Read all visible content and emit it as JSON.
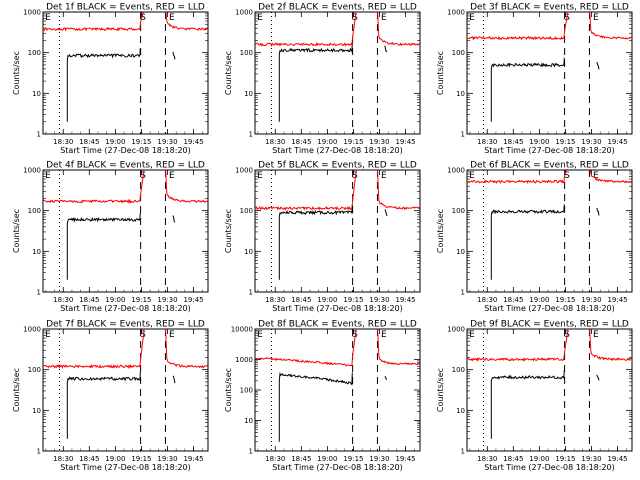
{
  "chart_data": [
    {
      "type": "line",
      "title": "Det 1f BLACK = Events, RED = LLD",
      "xlabel": "Start Time (27-Dec-08 18:18:20)",
      "ylabel": "Counts/sec",
      "yscale": "log",
      "ylim": [
        1,
        1000
      ],
      "ytick_labels": [
        "1",
        "10",
        "100",
        "1000"
      ],
      "xtick_labels": [
        "18:30",
        "18:45",
        "19:00",
        "19:15",
        "19:30",
        "19:45"
      ],
      "markers": [
        "E",
        "S",
        "E"
      ],
      "series": [
        {
          "name": "Events",
          "color": "#000000",
          "level": 85
        },
        {
          "name": "LLD",
          "color": "#ff0000",
          "level": 380
        }
      ]
    },
    {
      "type": "line",
      "title": "Det 2f BLACK = Events, RED = LLD",
      "xlabel": "Start Time (27-Dec-08 18:18:20)",
      "ylabel": "Counts/sec",
      "yscale": "log",
      "ylim": [
        1,
        1000
      ],
      "ytick_labels": [
        "1",
        "10",
        "100",
        "1000"
      ],
      "xtick_labels": [
        "18:30",
        "18:45",
        "19:00",
        "19:15",
        "19:30",
        "19:45"
      ],
      "markers": [
        "E",
        "S",
        "E"
      ],
      "series": [
        {
          "name": "Events",
          "color": "#000000",
          "level": 115
        },
        {
          "name": "LLD",
          "color": "#ff0000",
          "level": 160
        }
      ]
    },
    {
      "type": "line",
      "title": "Det 3f BLACK = Events, RED = LLD",
      "xlabel": "Start Time (27-Dec-08 18:18:20)",
      "ylabel": "Counts/sec",
      "yscale": "log",
      "ylim": [
        1,
        1000
      ],
      "ytick_labels": [
        "1",
        "10",
        "100",
        "1000"
      ],
      "xtick_labels": [
        "18:30",
        "18:45",
        "19:00",
        "19:15",
        "19:30",
        "19:45"
      ],
      "markers": [
        "E",
        "S",
        "E"
      ],
      "series": [
        {
          "name": "Events",
          "color": "#000000",
          "level": 50
        },
        {
          "name": "LLD",
          "color": "#ff0000",
          "level": 230
        }
      ]
    },
    {
      "type": "line",
      "title": "Det 4f BLACK = Events, RED = LLD",
      "xlabel": "Start Time (27-Dec-08 18:18:20)",
      "ylabel": "Counts/sec",
      "yscale": "log",
      "ylim": [
        1,
        1000
      ],
      "ytick_labels": [
        "1",
        "10",
        "100",
        "1000"
      ],
      "xtick_labels": [
        "18:30",
        "18:45",
        "19:00",
        "19:15",
        "19:30",
        "19:45"
      ],
      "markers": [
        "E",
        "S",
        "E"
      ],
      "series": [
        {
          "name": "Events",
          "color": "#000000",
          "level": 60
        },
        {
          "name": "LLD",
          "color": "#ff0000",
          "level": 170
        }
      ]
    },
    {
      "type": "line",
      "title": "Det 5f BLACK = Events, RED = LLD",
      "xlabel": "Start Time (27-Dec-08 18:18:20)",
      "ylabel": "Counts/sec",
      "yscale": "log",
      "ylim": [
        1,
        1000
      ],
      "ytick_labels": [
        "1",
        "10",
        "100",
        "1000"
      ],
      "xtick_labels": [
        "18:30",
        "18:45",
        "19:00",
        "19:15",
        "19:30",
        "19:45"
      ],
      "markers": [
        "E",
        "S",
        "E"
      ],
      "series": [
        {
          "name": "Events",
          "color": "#000000",
          "level": 90
        },
        {
          "name": "LLD",
          "color": "#ff0000",
          "level": 115
        }
      ]
    },
    {
      "type": "line",
      "title": "Det 6f BLACK = Events, RED = LLD",
      "xlabel": "Start Time (27-Dec-08 18:18:20)",
      "ylabel": "Counts/sec",
      "yscale": "log",
      "ylim": [
        1,
        1000
      ],
      "ytick_labels": [
        "1",
        "10",
        "100",
        "1000"
      ],
      "xtick_labels": [
        "18:30",
        "18:45",
        "19:00",
        "19:15",
        "19:30",
        "19:45"
      ],
      "markers": [
        "E",
        "S",
        "E"
      ],
      "series": [
        {
          "name": "Events",
          "color": "#000000",
          "level": 95
        },
        {
          "name": "LLD",
          "color": "#ff0000",
          "level": 520
        }
      ]
    },
    {
      "type": "line",
      "title": "Det 7f BLACK = Events, RED = LLD",
      "xlabel": "Start Time (27-Dec-08 18:18:20)",
      "ylabel": "Counts/sec",
      "yscale": "log",
      "ylim": [
        1,
        1000
      ],
      "ytick_labels": [
        "1",
        "10",
        "100",
        "1000"
      ],
      "xtick_labels": [
        "18:30",
        "18:45",
        "19:00",
        "19:15",
        "19:30",
        "19:45"
      ],
      "markers": [
        "E",
        "S",
        "E"
      ],
      "series": [
        {
          "name": "Events",
          "color": "#000000",
          "level": 60
        },
        {
          "name": "LLD",
          "color": "#ff0000",
          "level": 120
        }
      ]
    },
    {
      "type": "line",
      "title": "Det 8f BLACK = Events, RED = LLD",
      "xlabel": "Start Time (27-Dec-08 18:18:20)",
      "ylabel": "Counts/sec",
      "yscale": "log",
      "ylim": [
        1,
        10000
      ],
      "ytick_labels": [
        "1",
        "10",
        "100",
        "1000",
        "10000"
      ],
      "xtick_labels": [
        "18:30",
        "18:45",
        "19:00",
        "19:15",
        "19:30",
        "19:45"
      ],
      "markers": [
        "E",
        "S",
        "E"
      ],
      "series": [
        {
          "name": "Events",
          "color": "#000000",
          "level": 250
        },
        {
          "name": "LLD",
          "color": "#ff0000",
          "level": 900
        }
      ]
    },
    {
      "type": "line",
      "title": "Det 9f BLACK = Events, RED = LLD",
      "xlabel": "Start Time (27-Dec-08 18:18:20)",
      "ylabel": "Counts/sec",
      "yscale": "log",
      "ylim": [
        1,
        1000
      ],
      "ytick_labels": [
        "1",
        "10",
        "100",
        "1000"
      ],
      "xtick_labels": [
        "18:30",
        "18:45",
        "19:00",
        "19:15",
        "19:30",
        "19:45"
      ],
      "markers": [
        "E",
        "S",
        "E"
      ],
      "series": [
        {
          "name": "Events",
          "color": "#000000",
          "level": 65
        },
        {
          "name": "LLD",
          "color": "#ff0000",
          "level": 180
        }
      ]
    }
  ]
}
